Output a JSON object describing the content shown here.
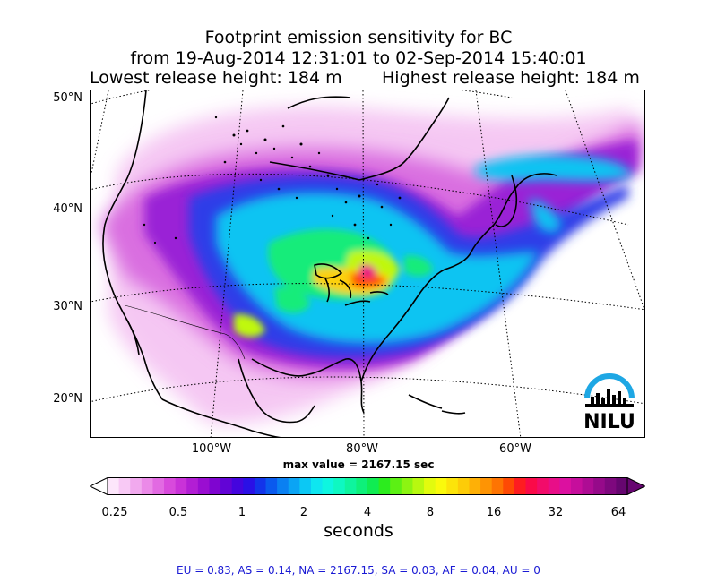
{
  "title": {
    "line1": "Footprint emission sensitivity for BC",
    "line2": "from 19-Aug-2014 12:31:01 to 02-Sep-2014 15:40:01",
    "lowest_release": "Lowest release height: 184 m",
    "highest_release": "Highest release height: 184 m"
  },
  "map": {
    "lat_labels": [
      "50°N",
      "40°N",
      "30°N",
      "20°N"
    ],
    "lon_labels": [
      "100°W",
      "80°W",
      "60°W"
    ],
    "max_value": "max value = 2167.15 sec"
  },
  "colorbar": {
    "tick_labels": [
      "0.25",
      "0.5",
      "1",
      "2",
      "4",
      "8",
      "16",
      "32",
      "64"
    ],
    "unit": "seconds",
    "colors": [
      "#fde6fb",
      "#f8c9f5",
      "#f1a9ee",
      "#eb8ae8",
      "#e26ae2",
      "#d84adc",
      "#c932d8",
      "#b21ed4",
      "#9a0ed1",
      "#7f05d0",
      "#6204d6",
      "#4405de",
      "#2a10e6",
      "#1334ea",
      "#0a5aee",
      "#0a80f2",
      "#0ba4f4",
      "#0cc8f4",
      "#0ee6f0",
      "#0ef6e0",
      "#0ef8c2",
      "#0ef49e",
      "#0ef07a",
      "#10ec52",
      "#2cec1e",
      "#5cf014",
      "#8cf412",
      "#b8f810",
      "#e2fb0e",
      "#fafa0c",
      "#fce40a",
      "#fdcc08",
      "#feb006",
      "#fe9404",
      "#fe7402",
      "#fe4a04",
      "#fe1c20",
      "#fa0a48",
      "#f20c6a",
      "#e80e88",
      "#dc10a0",
      "#c60e9c",
      "#ae0c94",
      "#960a8a",
      "#7e087e",
      "#660670"
    ]
  },
  "footer": {
    "regions": "EU = 0.83,  AS = 0.14,  NA = 2167.15,  SA = 0.03,  AF = 0.04,  AU = 0"
  },
  "logo": {
    "text": "NILU",
    "arc_color": "#1ea7e4"
  }
}
